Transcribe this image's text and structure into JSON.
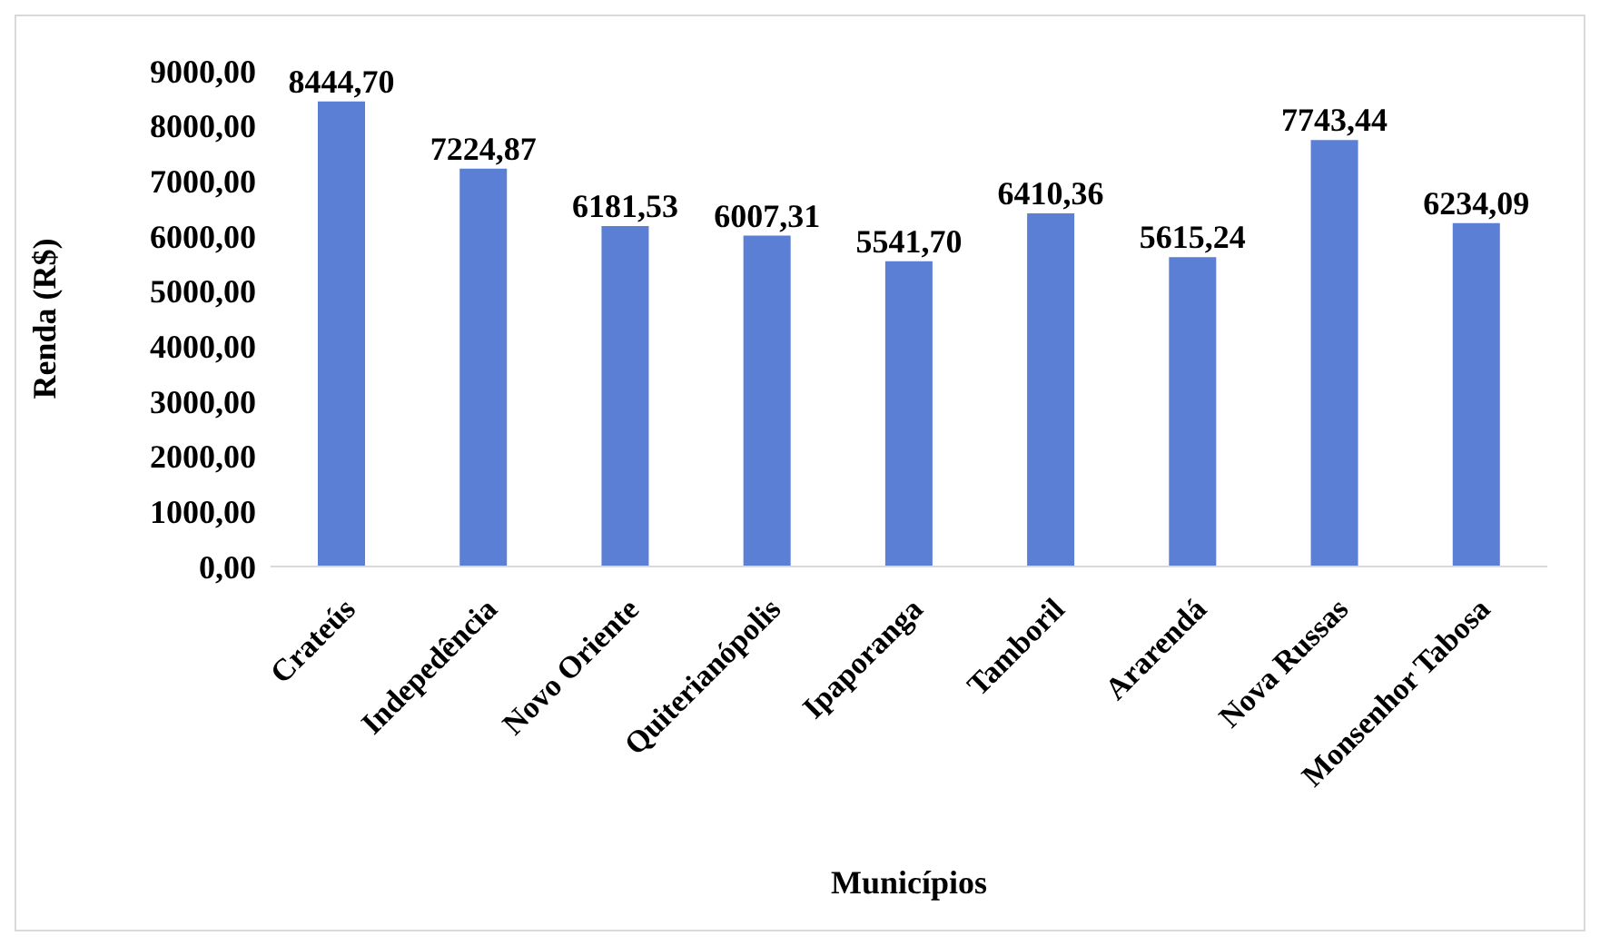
{
  "chart_data": {
    "type": "bar",
    "xlabel": "Municípios",
    "ylabel": "Renda  (R$)",
    "categories": [
      "Crateús",
      "Indepedência",
      "Novo Oriente",
      "Quiterianópolis",
      "Ipaporanga",
      "Tamboril",
      "Ararendá",
      "Nova Russas",
      "Monsenhor Tabosa"
    ],
    "values": [
      8444.7,
      7224.87,
      6181.53,
      6007.31,
      5541.7,
      6410.36,
      5615.24,
      7743.44,
      6234.09
    ],
    "value_labels": [
      "8444,70",
      "7224,87",
      "6181,53",
      "6007,31",
      "5541,70",
      "6410,36",
      "5615,24",
      "7743,44",
      "6234,09"
    ],
    "color": "#5b7fd5",
    "ylim": [
      0,
      9000
    ],
    "yticks": [
      {
        "value": 0,
        "label": "0,00"
      },
      {
        "value": 1000,
        "label": "1000,00"
      },
      {
        "value": 2000,
        "label": "2000,00"
      },
      {
        "value": 3000,
        "label": "3000,00"
      },
      {
        "value": 4000,
        "label": "4000,00"
      },
      {
        "value": 5000,
        "label": "5000,00"
      },
      {
        "value": 6000,
        "label": "6000,00"
      },
      {
        "value": 7000,
        "label": "7000,00"
      },
      {
        "value": 8000,
        "label": "8000,00"
      },
      {
        "value": 9000,
        "label": "9000,00"
      }
    ],
    "grid": false
  }
}
